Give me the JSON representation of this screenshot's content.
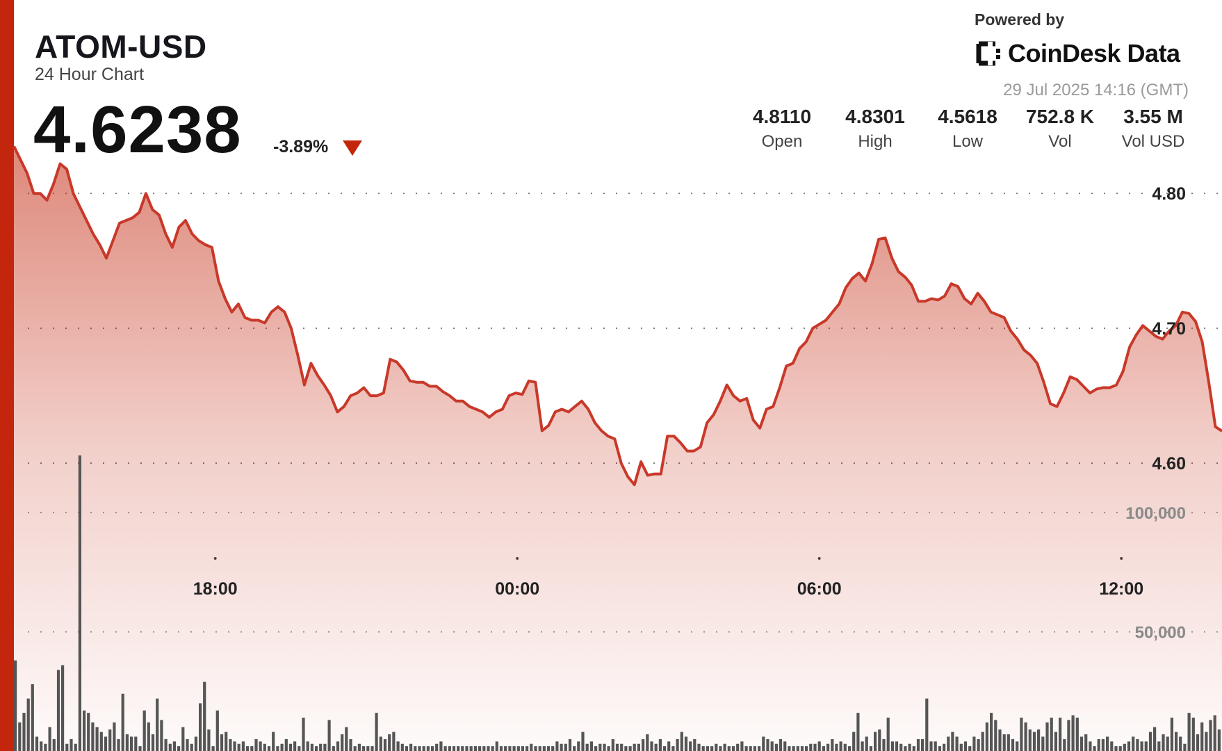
{
  "header": {
    "pair": "ATOM-USD",
    "subtitle": "24 Hour Chart",
    "price": "4.6238",
    "change": "-3.89%"
  },
  "brand": {
    "powered_by": "Powered by",
    "name": "CoinDesk Data",
    "timestamp": "29 Jul 2025 14:16 (GMT)"
  },
  "stats": [
    {
      "value": "4.8110",
      "label": "Open"
    },
    {
      "value": "4.8301",
      "label": "High"
    },
    {
      "value": "4.5618",
      "label": "Low"
    },
    {
      "value": "752.8 K",
      "label": "Vol"
    },
    {
      "value": "3.55 M",
      "label": "Vol USD"
    }
  ],
  "colors": {
    "accent": "#c3260d",
    "line": "#c8392a",
    "volume_bar": "#555555"
  },
  "chart_data": {
    "type": "area",
    "title": "ATOM-USD",
    "x_ticks": [
      "18:00",
      "00:00",
      "06:00",
      "12:00"
    ],
    "price_ticks": [
      "4.80",
      "4.70",
      "4.60"
    ],
    "volume_ticks": [
      "100,000",
      "50,000"
    ],
    "x_tick_hours": [
      4,
      10,
      16,
      22
    ],
    "start_time": "14:16",
    "price_ylim": [
      4.5,
      4.83
    ],
    "volume_ylim": [
      0,
      140000
    ],
    "grid": true,
    "series": [
      {
        "values": [
          4.835,
          4.825,
          4.815,
          4.8,
          4.8,
          4.795,
          4.807,
          4.822,
          4.818,
          4.8,
          4.79,
          4.78,
          4.77,
          4.762,
          4.752,
          4.765,
          4.778,
          4.78,
          4.782,
          4.786,
          4.8,
          4.788,
          4.784,
          4.77,
          4.76,
          4.775,
          4.78,
          4.77,
          4.765,
          4.762,
          4.76,
          4.735,
          4.722,
          4.712,
          4.718,
          4.708,
          4.706,
          4.706,
          4.704,
          4.712,
          4.716,
          4.712,
          4.7,
          4.68,
          4.658,
          4.674,
          4.665,
          4.658,
          4.65,
          4.638,
          4.642,
          4.65,
          4.652,
          4.656,
          4.65,
          4.65,
          4.652,
          4.677,
          4.675,
          4.669,
          4.661,
          4.66,
          4.66,
          4.657,
          4.657,
          4.653,
          4.65,
          4.646,
          4.646,
          4.642,
          4.64,
          4.638,
          4.634,
          4.638,
          4.64,
          4.65,
          4.652,
          4.651,
          4.661,
          4.66,
          4.624,
          4.628,
          4.638,
          4.64,
          4.638,
          4.642,
          4.646,
          4.64,
          4.63,
          4.624,
          4.62,
          4.618,
          4.6,
          4.59,
          4.584,
          4.601,
          4.591,
          4.592,
          4.592,
          4.62,
          4.62,
          4.615,
          4.609,
          4.609,
          4.612,
          4.63,
          4.636,
          4.646,
          4.658,
          4.65,
          4.646,
          4.648,
          4.632,
          4.626,
          4.64,
          4.642,
          4.656,
          4.672,
          4.674,
          4.685,
          4.69,
          4.7,
          4.703,
          4.706,
          4.712,
          4.718,
          4.73,
          4.737,
          4.741,
          4.735,
          4.748,
          4.766,
          4.767,
          4.752,
          4.742,
          4.738,
          4.732,
          4.72,
          4.72,
          4.722,
          4.721,
          4.724,
          4.733,
          4.731,
          4.722,
          4.718,
          4.726,
          4.72,
          4.712,
          4.71,
          4.708,
          4.698,
          4.692,
          4.684,
          4.68,
          4.674,
          4.66,
          4.644,
          4.642,
          4.652,
          4.664,
          4.662,
          4.657,
          4.652,
          4.655,
          4.656,
          4.656,
          4.658,
          4.668,
          4.686,
          4.695,
          4.702,
          4.698,
          4.694,
          4.692,
          4.698,
          4.702,
          4.712,
          4.711,
          4.705,
          4.69,
          4.66,
          4.627,
          4.6238
        ]
      }
    ],
    "volume": [
      38000,
      12000,
      16000,
      22000,
      28000,
      6000,
      4000,
      3000,
      10000,
      5000,
      34000,
      36000,
      3000,
      5000,
      3000,
      124000,
      17000,
      16000,
      12000,
      10000,
      8000,
      6000,
      9000,
      12000,
      5000,
      24000,
      7000,
      6000,
      6000,
      2000,
      17000,
      12000,
      7000,
      22000,
      13000,
      5000,
      3000,
      4000,
      2000,
      10000,
      5000,
      3000,
      6000,
      20000,
      29000,
      9000,
      2000,
      17000,
      7000,
      8000,
      5000,
      4000,
      3000,
      4000,
      2000,
      2000,
      5000,
      4000,
      3000,
      2000,
      8000,
      2000,
      3000,
      5000,
      3000,
      4000,
      2000,
      14000,
      4000,
      3000,
      2000,
      3000,
      3000,
      13000,
      2000,
      4000,
      7000,
      10000,
      5000,
      2000,
      3000,
      2000,
      2000,
      2000,
      16000,
      6000,
      5000,
      7000,
      8000,
      4000,
      3000,
      2000,
      3000,
      2000,
      2000,
      2000,
      2000,
      2000,
      3000,
      4000,
      2000,
      2000,
      2000,
      2000,
      2000,
      2000,
      2000,
      2000,
      2000,
      2000,
      2000,
      2000,
      4000,
      2000,
      2000,
      2000,
      2000,
      2000,
      2000,
      2000,
      3000,
      2000,
      2000,
      2000,
      2000,
      2000,
      4000,
      3000,
      3000,
      5000,
      2000,
      4000,
      8000,
      3000,
      4000,
      2000,
      3000,
      3000,
      2000,
      5000,
      3000,
      3000,
      2000,
      2000,
      3000,
      3000,
      5000,
      7000,
      4000,
      3000,
      5000,
      2000,
      4000,
      2000,
      5000,
      8000,
      6000,
      4000,
      5000,
      3000,
      2000,
      2000,
      2000,
      3000,
      2000,
      3000,
      2000,
      2000,
      3000,
      4000,
      2000,
      2000,
      2000,
      2000,
      6000,
      5000,
      4000,
      3000,
      5000,
      4000,
      2000,
      2000,
      2000,
      2000,
      2000,
      3000,
      3000,
      4000,
      2000,
      3000,
      5000,
      3000,
      4000,
      3000,
      2000,
      8000,
      16000,
      4000,
      6000,
      2000,
      8000,
      9000,
      5000,
      14000,
      4000,
      4000,
      3000,
      2000,
      3000,
      2000,
      5000,
      5000,
      22000,
      4000,
      4000,
      2000,
      3000,
      6000,
      8000,
      6000,
      3000,
      4000,
      2000,
      6000,
      5000,
      8000,
      12000,
      16000,
      13000,
      9000,
      7000,
      7000,
      5000,
      4000,
      14000,
      12000,
      9000,
      8000,
      9000,
      6000,
      12000,
      14000,
      8000,
      14000,
      5000,
      13000,
      15000,
      14000,
      6000,
      7000,
      4000,
      2000,
      5000,
      5000,
      6000,
      4000,
      2000,
      2000,
      3000,
      4000,
      6000,
      5000,
      4000,
      4000,
      8000,
      10000,
      4000,
      7000,
      6000,
      14000,
      8000,
      6000,
      3000,
      16000,
      14000,
      7000,
      12000,
      8000,
      13000,
      15000,
      9000
    ]
  }
}
